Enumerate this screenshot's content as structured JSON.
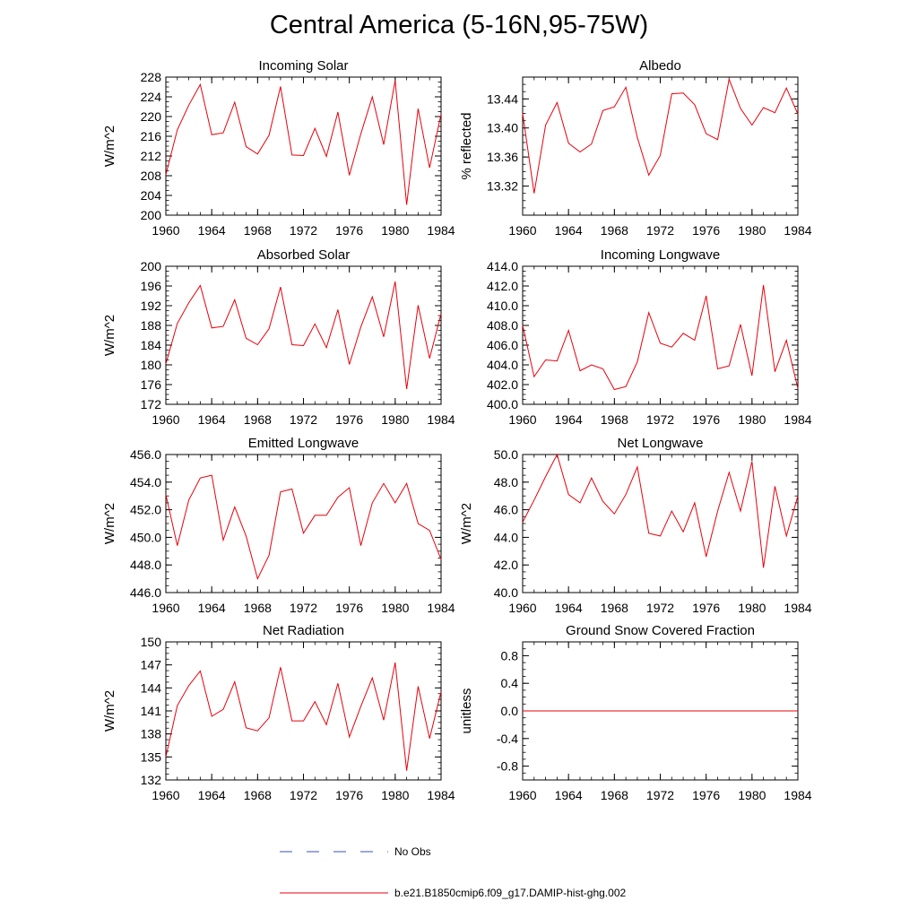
{
  "title": "Central America (5-16N,95-75W)",
  "legend": {
    "entries": [
      {
        "name": "No Obs",
        "color": "#3b4fc4",
        "style": "dashed"
      },
      {
        "name": "b.e21.B1850cmip6.f09_g17.DAMIP-hist-ghg.002",
        "color": "#e8000b",
        "style": "solid"
      }
    ]
  },
  "chart_data": [
    {
      "type": "line",
      "title": "Incoming Solar",
      "ylabel": "W/m^2",
      "xlim": [
        1960,
        1984
      ],
      "ylim": [
        200,
        228
      ],
      "xticks": [
        1960,
        1964,
        1968,
        1972,
        1976,
        1980,
        1984
      ],
      "yticks": [
        200,
        204,
        208,
        212,
        216,
        220,
        224,
        228
      ],
      "ytick_labels": [
        "200",
        "204",
        "208",
        "212",
        "216",
        "220",
        "224",
        "228"
      ],
      "x": [
        1960,
        1961,
        1962,
        1963,
        1964,
        1965,
        1966,
        1967,
        1968,
        1969,
        1970,
        1971,
        1972,
        1973,
        1974,
        1975,
        1976,
        1977,
        1978,
        1979,
        1980,
        1981,
        1982,
        1983,
        1984
      ],
      "series": [
        {
          "color": "#e8000b",
          "values": [
            208.2,
            217.3,
            222.3,
            226.5,
            216.3,
            216.7,
            222.9,
            213.9,
            212.4,
            216.2,
            226.1,
            212.2,
            212.1,
            217.6,
            211.9,
            220.9,
            208.1,
            216.5,
            224.0,
            214.3,
            227.3,
            202.1,
            221.6,
            209.6,
            220.5
          ]
        }
      ]
    },
    {
      "type": "line",
      "title": "Albedo",
      "ylabel": "% reflected",
      "xlim": [
        1960,
        1984
      ],
      "ylim": [
        13.28,
        13.47
      ],
      "xticks": [
        1960,
        1964,
        1968,
        1972,
        1976,
        1980,
        1984
      ],
      "yticks": [
        13.32,
        13.36,
        13.4,
        13.44
      ],
      "ytick_labels": [
        "13.32",
        "13.36",
        "13.40",
        "13.44"
      ],
      "x": [
        1960,
        1961,
        1962,
        1963,
        1964,
        1965,
        1966,
        1967,
        1968,
        1969,
        1970,
        1971,
        1972,
        1973,
        1974,
        1975,
        1976,
        1977,
        1978,
        1979,
        1980,
        1981,
        1982,
        1983,
        1984
      ],
      "series": [
        {
          "color": "#e8000b",
          "values": [
            13.42,
            13.31,
            13.404,
            13.435,
            13.379,
            13.367,
            13.378,
            13.424,
            13.429,
            13.456,
            13.387,
            13.335,
            13.362,
            13.447,
            13.448,
            13.432,
            13.392,
            13.384,
            13.467,
            13.427,
            13.404,
            13.428,
            13.421,
            13.455,
            13.419
          ]
        }
      ]
    },
    {
      "type": "line",
      "title": "Absorbed Solar",
      "ylabel": "W/m^2",
      "xlim": [
        1960,
        1984
      ],
      "ylim": [
        172,
        200
      ],
      "xticks": [
        1960,
        1964,
        1968,
        1972,
        1976,
        1980,
        1984
      ],
      "yticks": [
        172,
        176,
        180,
        184,
        188,
        192,
        196,
        200
      ],
      "ytick_labels": [
        "172",
        "176",
        "180",
        "184",
        "188",
        "192",
        "196",
        "200"
      ],
      "x": [
        1960,
        1961,
        1962,
        1963,
        1964,
        1965,
        1966,
        1967,
        1968,
        1969,
        1970,
        1971,
        1972,
        1973,
        1974,
        1975,
        1976,
        1977,
        1978,
        1979,
        1980,
        1981,
        1982,
        1983,
        1984
      ],
      "series": [
        {
          "color": "#e8000b",
          "values": [
            180.2,
            188.4,
            192.6,
            196.1,
            187.5,
            187.8,
            193.2,
            185.4,
            184.1,
            187.3,
            195.8,
            184.1,
            183.9,
            188.3,
            183.5,
            191.2,
            180.1,
            187.7,
            193.8,
            185.7,
            196.9,
            175.1,
            192.1,
            181.3,
            190.4
          ]
        }
      ]
    },
    {
      "type": "line",
      "title": "Incoming Longwave",
      "ylabel": "",
      "xlim": [
        1960,
        1984
      ],
      "ylim": [
        400,
        414
      ],
      "xticks": [
        1960,
        1964,
        1968,
        1972,
        1976,
        1980,
        1984
      ],
      "yticks": [
        400,
        402,
        404,
        406,
        408,
        410,
        412,
        414
      ],
      "ytick_labels": [
        "400.0",
        "402.0",
        "404.0",
        "406.0",
        "408.0",
        "410.0",
        "412.0",
        "414.0"
      ],
      "x": [
        1960,
        1961,
        1962,
        1963,
        1964,
        1965,
        1966,
        1967,
        1968,
        1969,
        1970,
        1971,
        1972,
        1973,
        1974,
        1975,
        1976,
        1977,
        1978,
        1979,
        1980,
        1981,
        1982,
        1983,
        1984
      ],
      "series": [
        {
          "color": "#e8000b",
          "values": [
            408.0,
            402.8,
            404.5,
            404.4,
            407.5,
            403.4,
            404.0,
            403.6,
            401.5,
            401.8,
            404.3,
            409.3,
            406.2,
            405.8,
            407.2,
            406.5,
            411.0,
            403.6,
            403.9,
            408.1,
            402.9,
            412.1,
            403.3,
            406.5,
            401.6
          ]
        }
      ]
    },
    {
      "type": "line",
      "title": "Emitted Longwave",
      "ylabel": "W/m^2",
      "xlim": [
        1960,
        1984
      ],
      "ylim": [
        446,
        456
      ],
      "xticks": [
        1960,
        1964,
        1968,
        1972,
        1976,
        1980,
        1984
      ],
      "yticks": [
        446,
        448,
        450,
        452,
        454,
        456
      ],
      "ytick_labels": [
        "446.0",
        "448.0",
        "450.0",
        "452.0",
        "454.0",
        "456.0"
      ],
      "x": [
        1960,
        1961,
        1962,
        1963,
        1964,
        1965,
        1966,
        1967,
        1968,
        1969,
        1970,
        1971,
        1972,
        1973,
        1974,
        1975,
        1976,
        1977,
        1978,
        1979,
        1980,
        1981,
        1982,
        1983,
        1984
      ],
      "series": [
        {
          "color": "#e8000b",
          "values": [
            453.1,
            449.4,
            452.7,
            454.3,
            454.5,
            449.8,
            452.2,
            450.1,
            447.0,
            448.7,
            453.3,
            453.5,
            450.3,
            451.6,
            451.6,
            452.9,
            453.6,
            449.4,
            452.5,
            453.9,
            452.5,
            453.9,
            451.0,
            450.5,
            448.4
          ]
        }
      ]
    },
    {
      "type": "line",
      "title": "Net Longwave",
      "ylabel": "W/m^2",
      "xlim": [
        1960,
        1984
      ],
      "ylim": [
        40,
        50
      ],
      "xticks": [
        1960,
        1964,
        1968,
        1972,
        1976,
        1980,
        1984
      ],
      "yticks": [
        40,
        42,
        44,
        46,
        48,
        50
      ],
      "ytick_labels": [
        "40.0",
        "42.0",
        "44.0",
        "46.0",
        "48.0",
        "50.0"
      ],
      "x": [
        1960,
        1961,
        1962,
        1963,
        1964,
        1965,
        1966,
        1967,
        1968,
        1969,
        1970,
        1971,
        1972,
        1973,
        1974,
        1975,
        1976,
        1977,
        1978,
        1979,
        1980,
        1981,
        1982,
        1983,
        1984
      ],
      "series": [
        {
          "color": "#e8000b",
          "values": [
            45.1,
            46.7,
            48.4,
            50.0,
            47.1,
            46.5,
            48.3,
            46.6,
            45.7,
            47.1,
            49.1,
            44.3,
            44.1,
            45.9,
            44.4,
            46.5,
            42.6,
            45.9,
            48.7,
            45.9,
            49.5,
            41.8,
            47.7,
            44.1,
            47.0
          ]
        }
      ]
    },
    {
      "type": "line",
      "title": "Net Radiation",
      "ylabel": "W/m^2",
      "xlim": [
        1960,
        1984
      ],
      "ylim": [
        132,
        150
      ],
      "xticks": [
        1960,
        1964,
        1968,
        1972,
        1976,
        1980,
        1984
      ],
      "yticks": [
        132,
        135,
        138,
        141,
        144,
        147,
        150
      ],
      "ytick_labels": [
        "132",
        "135",
        "138",
        "141",
        "144",
        "147",
        "150"
      ],
      "x": [
        1960,
        1961,
        1962,
        1963,
        1964,
        1965,
        1966,
        1967,
        1968,
        1969,
        1970,
        1971,
        1972,
        1973,
        1974,
        1975,
        1976,
        1977,
        1978,
        1979,
        1980,
        1981,
        1982,
        1983,
        1984
      ],
      "series": [
        {
          "color": "#e8000b",
          "values": [
            135.0,
            141.7,
            144.3,
            146.2,
            140.3,
            141.2,
            144.8,
            138.8,
            138.4,
            140.1,
            146.7,
            139.7,
            139.7,
            142.2,
            139.2,
            144.6,
            137.6,
            141.6,
            145.3,
            139.8,
            147.3,
            133.2,
            144.2,
            137.4,
            143.5
          ]
        }
      ]
    },
    {
      "type": "line",
      "title": "Ground Snow Covered Fraction",
      "ylabel": "unitless",
      "xlim": [
        1960,
        1984
      ],
      "ylim": [
        -1.0,
        1.0
      ],
      "xticks": [
        1960,
        1964,
        1968,
        1972,
        1976,
        1980,
        1984
      ],
      "yticks": [
        -0.8,
        -0.4,
        0.0,
        0.4,
        0.8
      ],
      "ytick_labels": [
        "-0.8",
        "-0.4",
        "0.0",
        "0.4",
        "0.8"
      ],
      "x": [
        1960,
        1961,
        1962,
        1963,
        1964,
        1965,
        1966,
        1967,
        1968,
        1969,
        1970,
        1971,
        1972,
        1973,
        1974,
        1975,
        1976,
        1977,
        1978,
        1979,
        1980,
        1981,
        1982,
        1983,
        1984
      ],
      "series": [
        {
          "color": "#e8000b",
          "values": [
            0,
            0,
            0,
            0,
            0,
            0,
            0,
            0,
            0,
            0,
            0,
            0,
            0,
            0,
            0,
            0,
            0,
            0,
            0,
            0,
            0,
            0,
            0,
            0,
            0
          ]
        }
      ]
    }
  ]
}
